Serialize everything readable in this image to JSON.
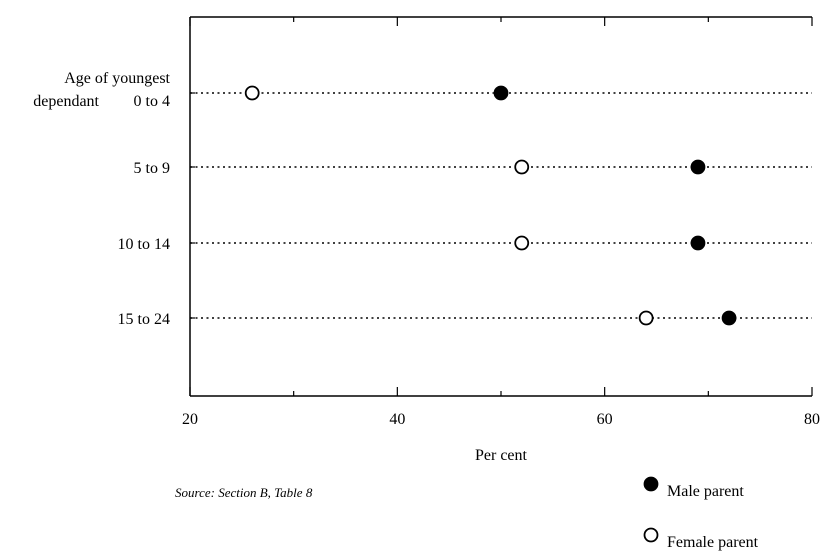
{
  "chart_data": {
    "type": "scatter",
    "title": "",
    "xlabel": "Per cent",
    "ylabel": "",
    "xlim": [
      20,
      80
    ],
    "x_ticks": [
      "20",
      "40",
      "60",
      "80"
    ],
    "categories": [
      "0 to 4",
      "5 to 9",
      "10 to 14",
      "15 to 24"
    ],
    "category_heading": [
      "Age of youngest",
      "dependant"
    ],
    "series": [
      {
        "name": "Male parent",
        "values": [
          50,
          69,
          69,
          72
        ]
      },
      {
        "name": "Female parent",
        "values": [
          26,
          52,
          52,
          64
        ]
      }
    ],
    "legend_position": "bottom-right",
    "source": "Source: Section B, Table 8"
  }
}
